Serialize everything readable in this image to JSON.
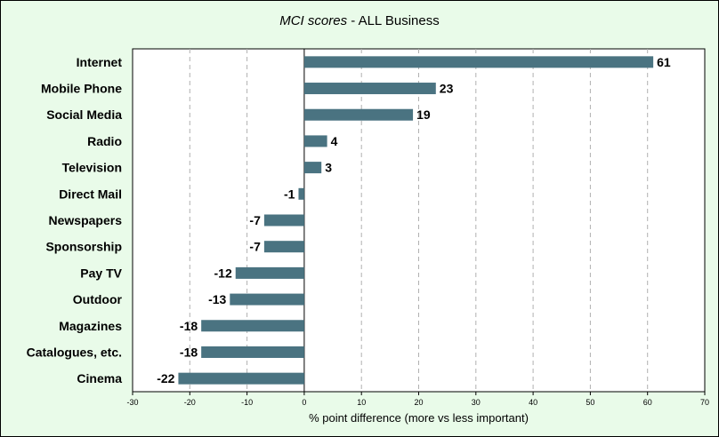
{
  "chart_data": {
    "type": "bar",
    "orientation": "horizontal",
    "title": {
      "italic_part": "MCI scores",
      "rest": " - ALL Business"
    },
    "xlabel": "% point difference (more vs less important)",
    "ylabel": "",
    "xlim": [
      -30,
      70
    ],
    "x_ticks": [
      -30,
      -20,
      -10,
      0,
      10,
      20,
      30,
      40,
      50,
      60,
      70
    ],
    "grid": "vertical dashed",
    "categories": [
      "Internet",
      "Mobile Phone",
      "Social Media",
      "Radio",
      "Television",
      "Direct Mail",
      "Newspapers",
      "Sponsorship",
      "Pay TV",
      "Outdoor",
      "Magazines",
      "Catalogues, etc.",
      "Cinema"
    ],
    "values": [
      61,
      23,
      19,
      4,
      3,
      -1,
      -7,
      -7,
      -12,
      -13,
      -18,
      -18,
      -22
    ],
    "data_labels": [
      "61",
      "23",
      "19",
      "4",
      "3",
      "-1",
      "-7",
      "-7",
      "-12",
      "-13",
      "-18",
      "-18",
      "-22"
    ],
    "colors": {
      "bar": "#4a7381",
      "background": "#e9fbe9",
      "plot_area": "#ffffff",
      "grid": "#b0b0b0"
    }
  }
}
